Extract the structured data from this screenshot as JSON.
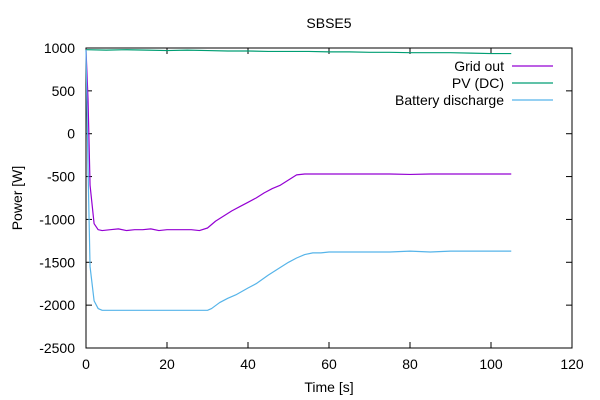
{
  "chart_data": {
    "type": "line",
    "title": "SBSE5",
    "xlabel": "Time [s]",
    "ylabel": "Power [W]",
    "xlim": [
      0,
      120
    ],
    "ylim": [
      -2500,
      1000
    ],
    "xticks": [
      0,
      20,
      40,
      60,
      80,
      100,
      120
    ],
    "yticks": [
      1000,
      500,
      0,
      -500,
      -1000,
      -1500,
      -2000,
      -2500
    ],
    "grid": false,
    "legend_position": "top-right",
    "series": [
      {
        "name": "Grid out",
        "color": "#9400d3",
        "x": [
          0,
          0.5,
          1,
          2,
          3,
          4,
          6,
          8,
          10,
          12,
          14,
          16,
          18,
          20,
          22,
          24,
          26,
          28,
          30,
          32,
          34,
          36,
          38,
          40,
          42,
          44,
          46,
          48,
          50,
          52,
          54,
          56,
          58,
          60,
          65,
          70,
          75,
          80,
          85,
          90,
          95,
          100,
          105
        ],
        "y": [
          980,
          400,
          -600,
          -1050,
          -1120,
          -1130,
          -1120,
          -1110,
          -1130,
          -1120,
          -1120,
          -1110,
          -1130,
          -1120,
          -1120,
          -1120,
          -1120,
          -1130,
          -1100,
          -1020,
          -960,
          -900,
          -850,
          -800,
          -750,
          -690,
          -640,
          -600,
          -540,
          -480,
          -470,
          -470,
          -470,
          -470,
          -470,
          -470,
          -470,
          -475,
          -470,
          -470,
          -470,
          -470,
          -470
        ]
      },
      {
        "name": "PV (DC)",
        "color": "#009e73",
        "x": [
          0,
          5,
          10,
          15,
          20,
          25,
          30,
          35,
          40,
          45,
          50,
          55,
          60,
          65,
          70,
          75,
          80,
          85,
          90,
          95,
          100,
          105
        ],
        "y": [
          980,
          975,
          980,
          975,
          970,
          975,
          970,
          965,
          965,
          960,
          960,
          960,
          955,
          955,
          950,
          950,
          945,
          945,
          945,
          940,
          935,
          935
        ]
      },
      {
        "name": "Battery discharge",
        "color": "#56b4e9",
        "x": [
          0,
          0.5,
          1,
          2,
          3,
          4,
          6,
          8,
          10,
          15,
          20,
          25,
          30,
          31,
          33,
          35,
          37,
          40,
          42,
          45,
          48,
          50,
          52,
          54,
          56,
          58,
          60,
          65,
          70,
          75,
          80,
          85,
          90,
          95,
          100,
          105
        ],
        "y": [
          980,
          -400,
          -1550,
          -1950,
          -2040,
          -2060,
          -2060,
          -2060,
          -2060,
          -2060,
          -2060,
          -2060,
          -2060,
          -2040,
          -1970,
          -1920,
          -1880,
          -1800,
          -1750,
          -1650,
          -1560,
          -1500,
          -1450,
          -1410,
          -1390,
          -1390,
          -1380,
          -1380,
          -1380,
          -1380,
          -1370,
          -1380,
          -1370,
          -1370,
          -1370,
          -1370
        ]
      }
    ]
  }
}
